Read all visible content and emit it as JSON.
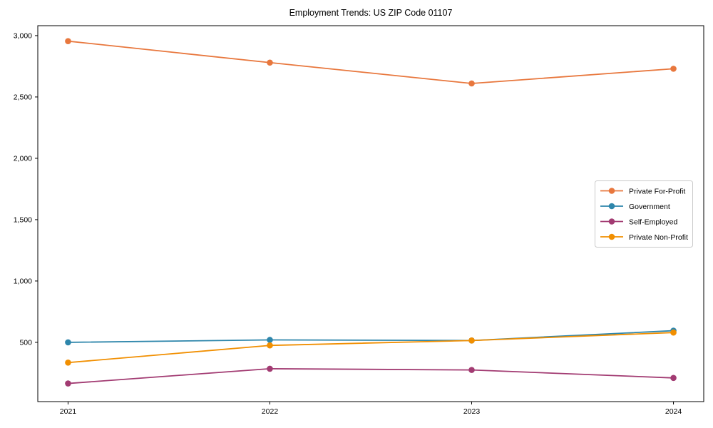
{
  "chart_data": {
    "type": "line",
    "title": "Employment Trends: US ZIP Code 01107",
    "xlabel": "",
    "ylabel": "",
    "x": [
      2021,
      2022,
      2023,
      2024
    ],
    "x_tick_labels": [
      "2021",
      "2022",
      "2023",
      "2024"
    ],
    "y_ticks": [
      500,
      1000,
      1500,
      2000,
      2500,
      3000
    ],
    "y_tick_labels": [
      "500",
      "1,000",
      "1,500",
      "2,000",
      "2,500",
      "3,000"
    ],
    "xlim": [
      2020.85,
      2024.15
    ],
    "ylim": [
      17,
      3081
    ],
    "grid": false,
    "legend_position": "center right",
    "series": [
      {
        "name": "Private For-Profit",
        "color": "#E8773D",
        "values": [
          2955,
          2780,
          2610,
          2730
        ]
      },
      {
        "name": "Government",
        "color": "#2E86AB",
        "values": [
          500,
          520,
          515,
          595
        ]
      },
      {
        "name": "Self-Employed",
        "color": "#A23B72",
        "values": [
          165,
          285,
          275,
          210
        ]
      },
      {
        "name": "Private Non-Profit",
        "color": "#F18F01",
        "values": [
          335,
          475,
          515,
          580
        ]
      }
    ],
    "axis_color": "#000000",
    "legend_border_color": "#c9c9c9",
    "background_color": "#ffffff"
  }
}
